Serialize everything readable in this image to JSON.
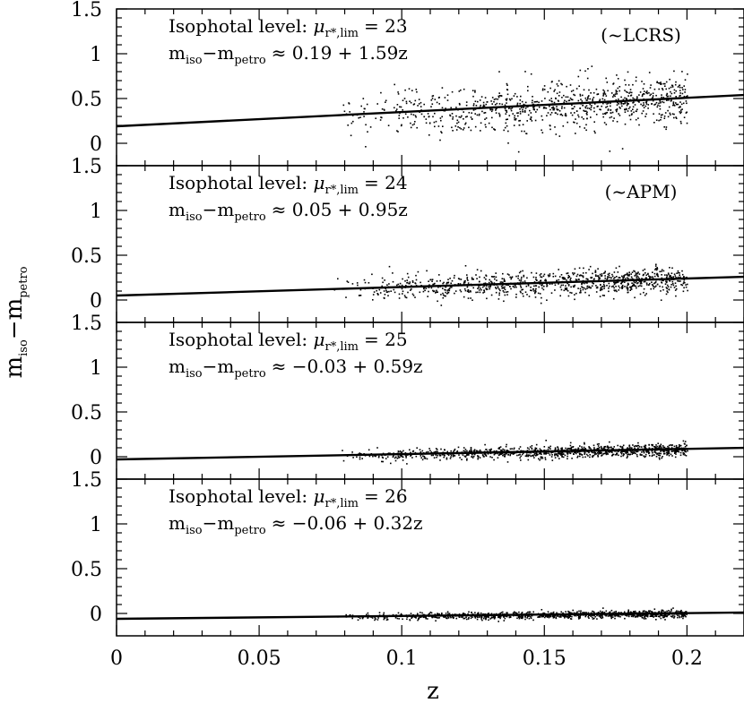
{
  "chart_data": [
    {
      "type": "scatter",
      "panel": 1,
      "annotation": {
        "isophotal_prefix": "Isophotal level: ",
        "mu": "μ",
        "mu_sub": "r*,lim",
        "level": "= 23",
        "m_iso": "m",
        "m_iso_sub": "iso",
        "minus": "−m",
        "m_petro_sub": "petro",
        "fit_text": "≈ 0.19 + 1.59z",
        "survey": "(~LCRS)"
      },
      "fit": {
        "intercept": 0.19,
        "slope": 1.59
      },
      "scatter": {
        "sigma": 0.13,
        "x_min": 0.075,
        "x_max": 0.2,
        "n_points": 900
      },
      "yticks": [
        "0",
        "0.5",
        "1",
        "1.5"
      ],
      "ylim": [
        -0.25,
        1.5
      ]
    },
    {
      "type": "scatter",
      "panel": 2,
      "annotation": {
        "isophotal_prefix": "Isophotal level: ",
        "mu": "μ",
        "mu_sub": "r*,lim",
        "level": "= 24",
        "m_iso": "m",
        "m_iso_sub": "iso",
        "minus": "−m",
        "m_petro_sub": "petro",
        "fit_text": "≈ 0.05 + 0.95z",
        "survey": "(~APM)"
      },
      "fit": {
        "intercept": 0.05,
        "slope": 0.95
      },
      "scatter": {
        "sigma": 0.07,
        "x_min": 0.075,
        "x_max": 0.2,
        "n_points": 950
      },
      "yticks": [
        "0",
        "0.5",
        "1",
        "1.5"
      ],
      "ylim": [
        -0.25,
        1.5
      ]
    },
    {
      "type": "scatter",
      "panel": 3,
      "annotation": {
        "isophotal_prefix": "Isophotal level: ",
        "mu": "μ",
        "mu_sub": "r*,lim",
        "level": "= 25",
        "m_iso": "m",
        "m_iso_sub": "iso",
        "minus": "−m",
        "m_petro_sub": "petro",
        "fit_text": "≈ −0.03 + 0.59z",
        "survey": ""
      },
      "fit": {
        "intercept": -0.03,
        "slope": 0.59
      },
      "scatter": {
        "sigma": 0.035,
        "x_min": 0.075,
        "x_max": 0.2,
        "n_points": 1000
      },
      "yticks": [
        "0",
        "0.5",
        "1",
        "1.5"
      ],
      "ylim": [
        -0.25,
        1.5
      ]
    },
    {
      "type": "scatter",
      "panel": 4,
      "annotation": {
        "isophotal_prefix": "Isophotal level: ",
        "mu": "μ",
        "mu_sub": "r*,lim",
        "level": "= 26",
        "m_iso": "m",
        "m_iso_sub": "iso",
        "minus": "−m",
        "m_petro_sub": "petro",
        "fit_text": "≈ −0.06 + 0.32z",
        "survey": ""
      },
      "fit": {
        "intercept": -0.06,
        "slope": 0.32
      },
      "scatter": {
        "sigma": 0.02,
        "x_min": 0.075,
        "x_max": 0.2,
        "n_points": 1000
      },
      "yticks": [
        "0",
        "0.5",
        "1",
        "1.5"
      ],
      "ylim": [
        -0.25,
        1.5
      ]
    }
  ],
  "axes": {
    "xlabel": "z",
    "ylabel_main": "m",
    "ylabel_sub1": "iso",
    "ylabel_minus": "−m",
    "ylabel_sub2": "petro",
    "xlim": [
      0,
      0.22
    ],
    "xticks": [
      "0",
      "0.05",
      "0.1",
      "0.15",
      "0.2"
    ],
    "grid": false
  },
  "colors": {
    "foreground": "#000000",
    "background": "#ffffff"
  }
}
